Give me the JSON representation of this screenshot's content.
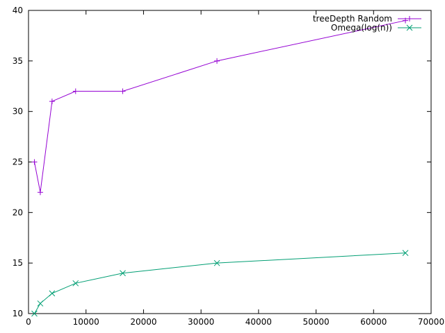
{
  "chart_data": {
    "type": "line",
    "title": "",
    "xlabel": "",
    "ylabel": "",
    "xlim": [
      0,
      70000
    ],
    "ylim": [
      10,
      40
    ],
    "xticks": [
      0,
      10000,
      20000,
      30000,
      40000,
      50000,
      60000,
      70000
    ],
    "yticks": [
      10,
      15,
      20,
      25,
      30,
      35,
      40
    ],
    "grid": false,
    "legend_position": "top-right",
    "series": [
      {
        "name": "treeDepth Random",
        "color": "#9400d3",
        "marker": "plus",
        "x": [
          1024,
          2048,
          4096,
          8192,
          16384,
          32768,
          65536
        ],
        "y": [
          25,
          22,
          31,
          32,
          32,
          35,
          39
        ]
      },
      {
        "name": "Omega(log(n))",
        "color": "#009e73",
        "marker": "cross",
        "x": [
          1024,
          2048,
          4096,
          8192,
          16384,
          32768,
          65536
        ],
        "y": [
          10,
          11,
          12,
          13,
          14,
          15,
          16
        ]
      }
    ]
  }
}
